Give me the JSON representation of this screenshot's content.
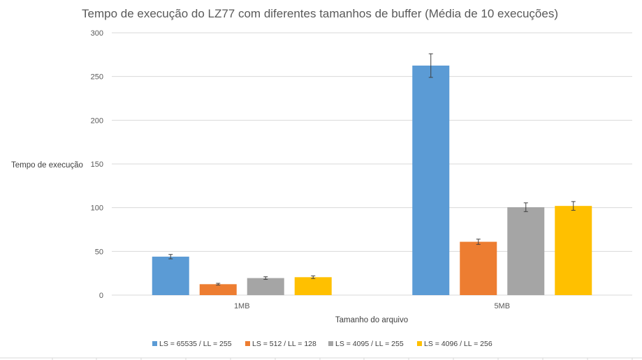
{
  "chart_data": {
    "type": "bar",
    "title": "Tempo de execução do LZ77 com diferentes tamanhos de buffer (Média de 10 execuções)",
    "xlabel": "Tamanho do arquivo",
    "ylabel": "Tempo de execução",
    "categories": [
      "1MB",
      "5MB"
    ],
    "ylim": [
      0,
      300
    ],
    "yticks": [
      0,
      50,
      100,
      150,
      200,
      250,
      300
    ],
    "grid": true,
    "legend_position": "bottom",
    "series": [
      {
        "name": "LS = 65535 / LL = 255",
        "color": "#5b9bd5",
        "values": [
          44,
          262.5
        ],
        "errors": [
          2.5,
          13.5
        ]
      },
      {
        "name": "LS = 512 / LL = 128",
        "color": "#ed7d31",
        "values": [
          12.5,
          61
        ],
        "errors": [
          1,
          3
        ]
      },
      {
        "name": "LS = 4095 / LL = 255",
        "color": "#a5a5a5",
        "values": [
          19.5,
          100.5
        ],
        "errors": [
          1.5,
          5
        ]
      },
      {
        "name": "LS = 4096 / LL = 256",
        "color": "#ffc000",
        "values": [
          20.5,
          102
        ],
        "errors": [
          1.5,
          5
        ]
      }
    ]
  }
}
